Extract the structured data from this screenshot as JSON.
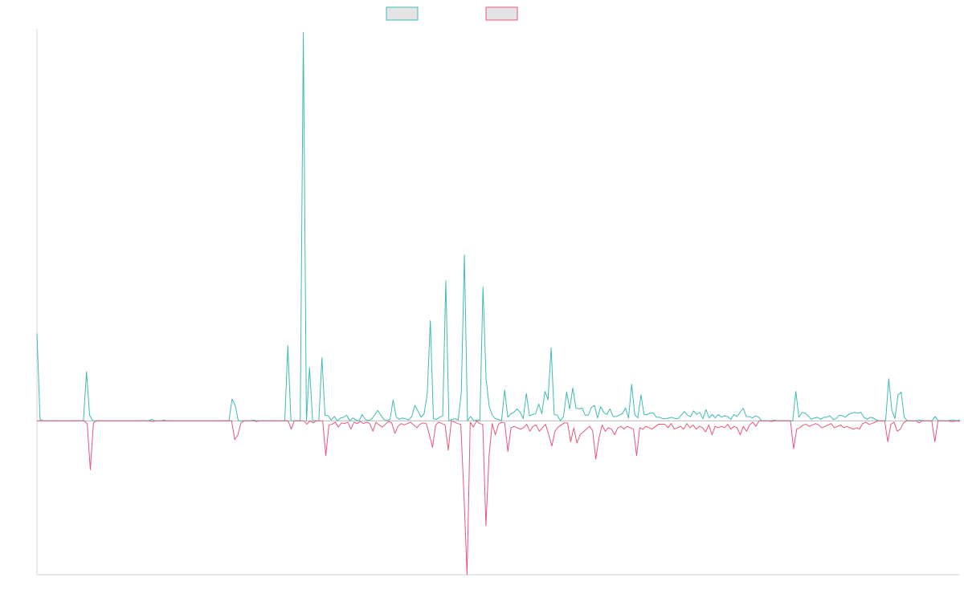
{
  "chart_data": {
    "type": "line",
    "legend": "top-center",
    "grid": false,
    "ylim": [
      -2.2,
      5.6
    ],
    "zero_line": true,
    "colors": {
      "series_a": "#3dbcb3",
      "series_b": "#e8567a",
      "legend_fill": "#e4e4e4",
      "axis": "#d6d6d6"
    },
    "series": [
      {
        "color": "#3dbcb3",
        "values": [
          1.25,
          0.02,
          0,
          0,
          0,
          0,
          0,
          0,
          0,
          0,
          0,
          0,
          0,
          0,
          0,
          0,
          0.7,
          0.08,
          0,
          0,
          0,
          0,
          0,
          0,
          0,
          0,
          0,
          0,
          0,
          0,
          0,
          0,
          0,
          0,
          0,
          0,
          0,
          0.02,
          0,
          0,
          0,
          0.01,
          0,
          0,
          0,
          0,
          0,
          0,
          0,
          0,
          0,
          0,
          0,
          0,
          0,
          0,
          0,
          0,
          0,
          0,
          0,
          0,
          0,
          0.31,
          0.22,
          0,
          0,
          0,
          0,
          0,
          0.01,
          0,
          0,
          0,
          0,
          0,
          0,
          0,
          0,
          0,
          0,
          1.07,
          0,
          0,
          0,
          0,
          5.55,
          0,
          0.76,
          0,
          0,
          0,
          0.9,
          0.08,
          0.07,
          0.01,
          0.06,
          0,
          0.04,
          0.05,
          0.08,
          0,
          0.04,
          0.01,
          0,
          0.09,
          0.02,
          0,
          0.02,
          0.08,
          0.15,
          0.08,
          0.02,
          0,
          0.02,
          0.3,
          0.05,
          0.02,
          0.04,
          0.03,
          0.01,
          0.06,
          0.22,
          0.14,
          0.05,
          0.1,
          0.38,
          1.43,
          0.03,
          0.02,
          0.05,
          0.07,
          2.0,
          0,
          0.02,
          0.03,
          0.01,
          0.4,
          2.37,
          0,
          0.06,
          0,
          0.01,
          0.01,
          1.91,
          0.6,
          0.21,
          0.08,
          0.03,
          0.02,
          0,
          0.44,
          0.05,
          0.1,
          0.12,
          0.17,
          0.12,
          0.03,
          0.39,
          0.07,
          0.09,
          0.1,
          0.24,
          0.1,
          0.42,
          0.3,
          1.04,
          0.09,
          0.08,
          0,
          0.06,
          0.41,
          0.17,
          0.47,
          0.18,
          0.17,
          0.18,
          0.08,
          0.08,
          0.19,
          0.22,
          0.04,
          0.2,
          0.12,
          0.09,
          0.17,
          0.06,
          0.06,
          0.08,
          0.1,
          0.18,
          0.04,
          0.52,
          0.09,
          0.04,
          0.37,
          0.09,
          0.09,
          0.11,
          0.11,
          0.05,
          0.05,
          0.03,
          0.03,
          0.04,
          0.05,
          0.03,
          0.03,
          0.08,
          0.13,
          0.08,
          0.06,
          0.14,
          0.09,
          0.12,
          0.03,
          0.16,
          0.04,
          0.09,
          0.04,
          0.09,
          0.05,
          0.07,
          0.06,
          0.02,
          0.09,
          0.06,
          0.12,
          0.18,
          0.06,
          0.06,
          0.04,
          0.07,
          0.05,
          0,
          0,
          0,
          0,
          0.01,
          0,
          0,
          0,
          0,
          0,
          0,
          0.42,
          0.05,
          0.12,
          0.11,
          0.07,
          0.02,
          0.04,
          0.05,
          0.02,
          0.05,
          0.05,
          0.07,
          0.02,
          0.03,
          0.08,
          0.07,
          0.05,
          0.09,
          0.11,
          0.12,
          0.11,
          0.12,
          0.05,
          0.02,
          0.05,
          0.04,
          0.01,
          0,
          0,
          0,
          0.6,
          0.15,
          0.03,
          0.37,
          0.41,
          0.05,
          0,
          0,
          0,
          0,
          0.01,
          0,
          0,
          0,
          0,
          0.06,
          0,
          0,
          0,
          0,
          0.01,
          0.01,
          0,
          0.01
        ]
      },
      {
        "color": "#e8567a",
        "values": [
          0,
          0,
          0,
          0,
          0,
          0,
          0,
          0,
          0,
          0,
          0,
          0,
          0,
          0,
          0,
          0,
          -0.04,
          -0.7,
          -0.03,
          0,
          0,
          0,
          0,
          0,
          0,
          0,
          0,
          0,
          0,
          0,
          0,
          0,
          0,
          0,
          0,
          0,
          0,
          -0.01,
          0,
          0,
          0,
          0,
          0,
          0,
          0,
          0,
          0,
          0,
          0,
          0,
          0,
          0,
          0,
          0,
          0,
          0,
          0,
          0,
          0,
          0,
          0,
          0,
          0,
          -0.27,
          -0.2,
          -0.03,
          0,
          0,
          0,
          0,
          -0.01,
          0,
          0,
          0,
          0,
          0,
          0,
          0,
          0,
          0,
          0,
          -0.12,
          0,
          0,
          0,
          0,
          -0.05,
          0,
          -0.03,
          0,
          0,
          0,
          -0.5,
          -0.06,
          -0.05,
          -0.02,
          -0.09,
          -0.03,
          -0.04,
          -0.02,
          -0.12,
          -0.02,
          -0.04,
          -0.01,
          -0.04,
          -0.02,
          -0.04,
          -0.15,
          -0.02,
          -0.06,
          -0.09,
          -0.05,
          -0.01,
          -0.03,
          -0.18,
          -0.08,
          -0.04,
          -0.06,
          -0.04,
          -0.02,
          -0.06,
          -0.1,
          -0.05,
          -0.03,
          -0.04,
          -0.2,
          -0.38,
          -0.06,
          -0.02,
          -0.04,
          -0.06,
          -0.42,
          0,
          -0.02,
          -0.04,
          -0.05,
          -1.05,
          -2.2,
          -0.02,
          -0.09,
          0,
          -0.04,
          -0.05,
          -1.5,
          -0.5,
          -0.04,
          -0.2,
          -0.05,
          -0.02,
          -0.03,
          -0.44,
          -0.1,
          -0.08,
          -0.1,
          -0.12,
          -0.1,
          -0.05,
          -0.15,
          -0.08,
          -0.06,
          -0.15,
          -0.1,
          -0.05,
          -0.2,
          -0.36,
          -0.15,
          -0.09,
          -0.06,
          -0.03,
          -0.03,
          -0.3,
          -0.1,
          -0.32,
          -0.2,
          -0.16,
          -0.12,
          -0.08,
          -0.14,
          -0.55,
          -0.25,
          -0.06,
          -0.15,
          -0.1,
          -0.12,
          -0.2,
          -0.1,
          -0.08,
          -0.12,
          -0.08,
          -0.1,
          -0.12,
          -0.5,
          -0.1,
          -0.12,
          -0.08,
          -0.1,
          -0.12,
          -0.08,
          -0.05,
          -0.05,
          -0.05,
          -0.1,
          -0.04,
          -0.12,
          -0.1,
          -0.08,
          -0.12,
          -0.04,
          -0.1,
          -0.06,
          -0.12,
          -0.08,
          -0.1,
          -0.16,
          -0.06,
          -0.2,
          -0.08,
          -0.1,
          -0.08,
          -0.1,
          -0.05,
          -0.12,
          -0.08,
          -0.1,
          -0.2,
          -0.08,
          -0.15,
          -0.06,
          -0.02,
          -0.08,
          0,
          0,
          0,
          0,
          -0.01,
          0,
          0,
          0,
          0,
          0,
          0,
          -0.4,
          -0.12,
          -0.1,
          -0.06,
          -0.05,
          -0.08,
          -0.06,
          -0.04,
          -0.06,
          -0.1,
          -0.08,
          -0.06,
          -0.04,
          -0.1,
          -0.08,
          -0.06,
          -0.1,
          -0.08,
          -0.1,
          -0.12,
          -0.1,
          -0.12,
          -0.04,
          -0.02,
          -0.05,
          -0.04,
          -0.02,
          0,
          0,
          0,
          -0.3,
          -0.05,
          -0.02,
          -0.15,
          -0.12,
          -0.03,
          0,
          0,
          0,
          0,
          -0.03,
          0,
          0,
          0,
          0,
          -0.3,
          0,
          0,
          0,
          0,
          -0.01,
          -0.01,
          0,
          -0.01
        ]
      }
    ]
  }
}
